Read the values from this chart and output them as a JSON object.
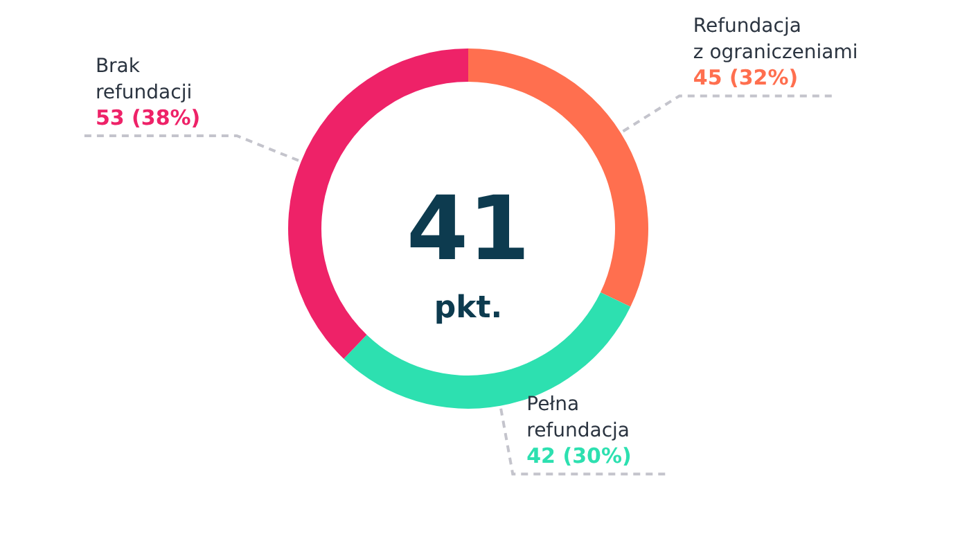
{
  "chart_data": {
    "type": "donut",
    "categories": [
      "Refundacja z ograniczeniami",
      "Pełna refundacja",
      "Brak refundacji"
    ],
    "values": [
      45,
      42,
      53
    ],
    "colors": [
      "#ff6f4f",
      "#2de0b0",
      "#ee2268"
    ],
    "value_labels": [
      "45 (32%)",
      "42 (30%)",
      "53 (38%)"
    ],
    "annotations": [
      "41",
      "pkt."
    ]
  }
}
